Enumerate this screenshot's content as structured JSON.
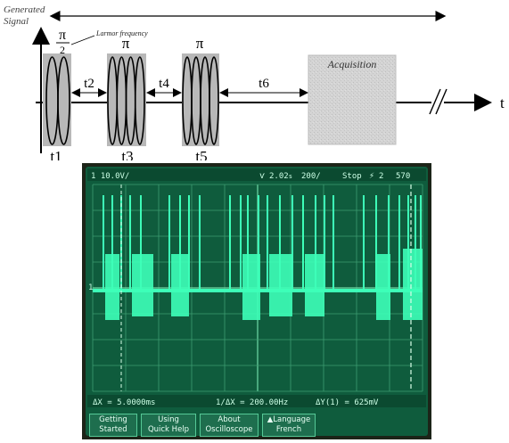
{
  "diagram": {
    "axis_label": "Generated Signal",
    "time_label": "t",
    "larmor_label": "Larmor frequency",
    "pulse1_label": {
      "num": "π",
      "den": "2"
    },
    "pulse2_label": "π",
    "pulse3_label": "π",
    "acquisition_label": "Acquisition",
    "t1": "t1",
    "t2": "t2",
    "t3": "t3",
    "t4": "t4",
    "t5": "t5",
    "t6": "t6"
  },
  "oscilloscope": {
    "ch1_scale": "1 10.0V/",
    "time_ref": "2.02",
    "time_ref_unit": "s",
    "timebase": "200",
    "timebase_unit": "/",
    "mode": "Stop",
    "trigger": "2",
    "trigger_level": "570",
    "meas_dx": "ΔX = 5.0000ms",
    "meas_inv_dx": "1/ΔX = 200.00Hz",
    "meas_dy": "ΔY(1) = 625mV",
    "softkeys": [
      {
        "line1": "Getting",
        "line2": "Started"
      },
      {
        "line1": "Using",
        "line2": "Quick Help"
      },
      {
        "line1": "About",
        "line2": "Oscilloscope"
      },
      {
        "line1": "▲Language",
        "line2": "French"
      }
    ],
    "colors": {
      "trace": "#3dffb8",
      "screen": "#0f5c3d",
      "bezel": "#1c2418"
    }
  }
}
